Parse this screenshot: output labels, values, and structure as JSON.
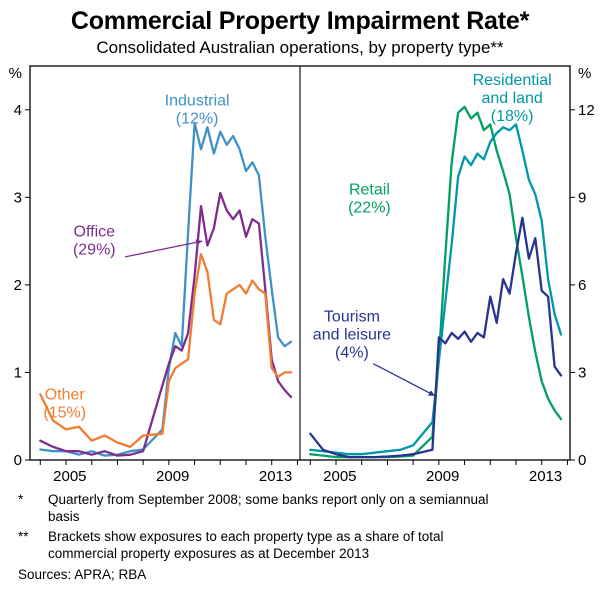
{
  "title": "Commercial Property Impairment Rate*",
  "subtitle": "Consolidated Australian operations, by property type**",
  "footnotes": [
    {
      "marker": "*",
      "text": "Quarterly from September 2008; some banks report only on a semiannual basis"
    },
    {
      "marker": "**",
      "text": "Brackets show exposures to each property type as a share of total commercial property exposures as at December 2013"
    }
  ],
  "sources": "Sources: APRA; RBA",
  "chart_data": {
    "type": "line",
    "x_range": [
      2003.6,
      2014.1
    ],
    "x_tick_labels": [
      2005,
      2009,
      2013
    ],
    "grid": "off",
    "frame": "box with centre divider, two panels sharing x axis",
    "panels": [
      {
        "side": "left",
        "axis_label": "%",
        "ylim": [
          0,
          4.5
        ],
        "yticks": [
          0,
          1,
          2,
          3,
          4
        ],
        "series": [
          {
            "name": "Industrial",
            "share": "(12%)",
            "color": "#4191C9",
            "points": [
              [
                2004,
                0.12
              ],
              [
                2004.5,
                0.1
              ],
              [
                2005,
                0.1
              ],
              [
                2005.5,
                0.06
              ],
              [
                2006,
                0.1
              ],
              [
                2006.5,
                0.05
              ],
              [
                2007,
                0.06
              ],
              [
                2007.5,
                0.1
              ],
              [
                2008,
                0.12
              ],
              [
                2008.75,
                0.35
              ],
              [
                2009,
                1.05
              ],
              [
                2009.25,
                1.45
              ],
              [
                2009.5,
                1.3
              ],
              [
                2009.75,
                2.6
              ],
              [
                2010,
                3.85
              ],
              [
                2010.25,
                3.55
              ],
              [
                2010.5,
                3.8
              ],
              [
                2010.75,
                3.5
              ],
              [
                2011,
                3.75
              ],
              [
                2011.25,
                3.6
              ],
              [
                2011.5,
                3.7
              ],
              [
                2011.75,
                3.55
              ],
              [
                2012,
                3.3
              ],
              [
                2012.25,
                3.4
              ],
              [
                2012.5,
                3.25
              ],
              [
                2012.75,
                2.55
              ],
              [
                2013,
                1.95
              ],
              [
                2013.25,
                1.4
              ],
              [
                2013.5,
                1.3
              ],
              [
                2013.75,
                1.35
              ]
            ]
          },
          {
            "name": "Office",
            "share": "(29%)",
            "color": "#7D2E8D",
            "points": [
              [
                2004,
                0.22
              ],
              [
                2004.5,
                0.15
              ],
              [
                2005,
                0.1
              ],
              [
                2005.5,
                0.1
              ],
              [
                2006,
                0.06
              ],
              [
                2006.5,
                0.1
              ],
              [
                2007,
                0.05
              ],
              [
                2007.5,
                0.06
              ],
              [
                2008,
                0.1
              ],
              [
                2008.75,
                0.85
              ],
              [
                2009,
                1.1
              ],
              [
                2009.25,
                1.3
              ],
              [
                2009.5,
                1.25
              ],
              [
                2009.75,
                1.45
              ],
              [
                2010,
                2.1
              ],
              [
                2010.25,
                2.9
              ],
              [
                2010.5,
                2.45
              ],
              [
                2010.75,
                2.65
              ],
              [
                2011,
                3.05
              ],
              [
                2011.25,
                2.85
              ],
              [
                2011.5,
                2.75
              ],
              [
                2011.75,
                2.85
              ],
              [
                2012,
                2.55
              ],
              [
                2012.25,
                2.75
              ],
              [
                2012.5,
                2.7
              ],
              [
                2012.75,
                1.95
              ],
              [
                2013,
                1.15
              ],
              [
                2013.25,
                0.9
              ],
              [
                2013.5,
                0.8
              ],
              [
                2013.75,
                0.72
              ]
            ]
          },
          {
            "name": "Other",
            "share": "(15%)",
            "color": "#EF7D33",
            "points": [
              [
                2004,
                0.75
              ],
              [
                2004.5,
                0.45
              ],
              [
                2005,
                0.35
              ],
              [
                2005.5,
                0.38
              ],
              [
                2006,
                0.22
              ],
              [
                2006.5,
                0.28
              ],
              [
                2007,
                0.2
              ],
              [
                2007.5,
                0.15
              ],
              [
                2008,
                0.28
              ],
              [
                2008.75,
                0.3
              ],
              [
                2009,
                0.9
              ],
              [
                2009.25,
                1.05
              ],
              [
                2009.5,
                1.1
              ],
              [
                2009.75,
                1.15
              ],
              [
                2010,
                1.9
              ],
              [
                2010.25,
                2.35
              ],
              [
                2010.5,
                2.15
              ],
              [
                2010.75,
                1.6
              ],
              [
                2011,
                1.55
              ],
              [
                2011.25,
                1.9
              ],
              [
                2011.5,
                1.95
              ],
              [
                2011.75,
                2.0
              ],
              [
                2012,
                1.9
              ],
              [
                2012.25,
                2.05
              ],
              [
                2012.5,
                1.95
              ],
              [
                2012.75,
                1.9
              ],
              [
                2013,
                1.05
              ],
              [
                2013.25,
                0.95
              ],
              [
                2013.5,
                1.0
              ],
              [
                2013.75,
                1.0
              ]
            ]
          }
        ],
        "annotations": [
          {
            "lines": [
              "Industrial",
              "(12%)"
            ],
            "color": "#4191C9",
            "x": 2010.1,
            "y": 4.05
          },
          {
            "lines": [
              "Office",
              "(29%)"
            ],
            "color": "#7D2E8D",
            "x": 2006.1,
            "y": 2.55,
            "arrow": {
              "from": [
                2007.3,
                2.32
              ],
              "to": [
                2010.3,
                2.5
              ]
            }
          },
          {
            "lines": [
              "Other",
              "(15%)"
            ],
            "color": "#EF7D33",
            "x": 2004.95,
            "y": 0.69
          }
        ]
      },
      {
        "side": "right",
        "axis_label": "%",
        "ylim": [
          0,
          13.5
        ],
        "yticks": [
          0,
          3,
          6,
          9,
          12
        ],
        "series": [
          {
            "name": "Retail",
            "share": "(22%)",
            "color": "#00A160",
            "points": [
              [
                2004,
                0.2
              ],
              [
                2004.5,
                0.15
              ],
              [
                2005,
                0.1
              ],
              [
                2005.5,
                0.1
              ],
              [
                2006,
                0.1
              ],
              [
                2006.5,
                0.1
              ],
              [
                2007,
                0.1
              ],
              [
                2007.5,
                0.12
              ],
              [
                2008,
                0.15
              ],
              [
                2008.75,
                0.8
              ],
              [
                2009,
                3.5
              ],
              [
                2009.25,
                7.0
              ],
              [
                2009.5,
                10.2
              ],
              [
                2009.75,
                11.9
              ],
              [
                2010,
                12.1
              ],
              [
                2010.25,
                11.7
              ],
              [
                2010.5,
                11.9
              ],
              [
                2010.75,
                11.3
              ],
              [
                2011,
                11.5
              ],
              [
                2011.25,
                10.6
              ],
              [
                2011.5,
                9.9
              ],
              [
                2011.75,
                9.1
              ],
              [
                2012,
                7.6
              ],
              [
                2012.25,
                6.3
              ],
              [
                2012.5,
                4.9
              ],
              [
                2012.75,
                3.7
              ],
              [
                2013,
                2.7
              ],
              [
                2013.25,
                2.1
              ],
              [
                2013.5,
                1.7
              ],
              [
                2013.75,
                1.4
              ]
            ]
          },
          {
            "name": "Residential and land",
            "share": "(18%)",
            "color": "#0098A8",
            "points": [
              [
                2004,
                0.35
              ],
              [
                2004.5,
                0.3
              ],
              [
                2005,
                0.25
              ],
              [
                2005.5,
                0.2
              ],
              [
                2006,
                0.2
              ],
              [
                2006.5,
                0.25
              ],
              [
                2007,
                0.3
              ],
              [
                2007.5,
                0.35
              ],
              [
                2008,
                0.5
              ],
              [
                2008.75,
                1.3
              ],
              [
                2009,
                3.4
              ],
              [
                2009.25,
                5.4
              ],
              [
                2009.5,
                7.4
              ],
              [
                2009.75,
                9.7
              ],
              [
                2010,
                10.4
              ],
              [
                2010.25,
                10.1
              ],
              [
                2010.5,
                10.5
              ],
              [
                2010.75,
                10.3
              ],
              [
                2011,
                10.9
              ],
              [
                2011.25,
                11.2
              ],
              [
                2011.5,
                11.4
              ],
              [
                2011.75,
                11.3
              ],
              [
                2012,
                11.5
              ],
              [
                2012.25,
                10.6
              ],
              [
                2012.5,
                9.6
              ],
              [
                2012.75,
                9.1
              ],
              [
                2013,
                8.2
              ],
              [
                2013.25,
                6.2
              ],
              [
                2013.5,
                5.0
              ],
              [
                2013.75,
                4.3
              ]
            ]
          },
          {
            "name": "Tourism and leisure",
            "share": "(4%)",
            "color": "#28348F",
            "points": [
              [
                2004,
                0.9
              ],
              [
                2004.5,
                0.35
              ],
              [
                2005,
                0.2
              ],
              [
                2005.5,
                0.1
              ],
              [
                2006,
                0.1
              ],
              [
                2006.5,
                0.1
              ],
              [
                2007,
                0.12
              ],
              [
                2007.5,
                0.15
              ],
              [
                2008,
                0.2
              ],
              [
                2008.75,
                0.35
              ],
              [
                2009,
                4.2
              ],
              [
                2009.25,
                4.0
              ],
              [
                2009.5,
                4.35
              ],
              [
                2009.75,
                4.15
              ],
              [
                2010,
                4.4
              ],
              [
                2010.25,
                4.05
              ],
              [
                2010.5,
                4.35
              ],
              [
                2010.75,
                4.2
              ],
              [
                2011,
                5.6
              ],
              [
                2011.25,
                4.7
              ],
              [
                2011.5,
                6.2
              ],
              [
                2011.75,
                5.7
              ],
              [
                2012,
                7.1
              ],
              [
                2012.25,
                8.3
              ],
              [
                2012.5,
                6.9
              ],
              [
                2012.75,
                7.6
              ],
              [
                2013,
                5.8
              ],
              [
                2013.25,
                5.6
              ],
              [
                2013.5,
                3.2
              ],
              [
                2013.75,
                2.9
              ]
            ]
          }
        ],
        "annotations": [
          {
            "lines": [
              "Residential",
              "and land",
              "(18%)"
            ],
            "color": "#0098A8",
            "x": 2011.85,
            "y": 12.85
          },
          {
            "lines": [
              "Retail",
              "(22%)"
            ],
            "color": "#00A160",
            "x": 2006.3,
            "y": 9.1
          },
          {
            "lines": [
              "Tourism",
              "and leisure",
              "(4%)"
            ],
            "color": "#28348F",
            "x": 2005.62,
            "y": 4.75,
            "arrow": {
              "from": [
                2006.45,
                3.3
              ],
              "to": [
                2008.85,
                2.2
              ]
            }
          }
        ]
      }
    ]
  }
}
